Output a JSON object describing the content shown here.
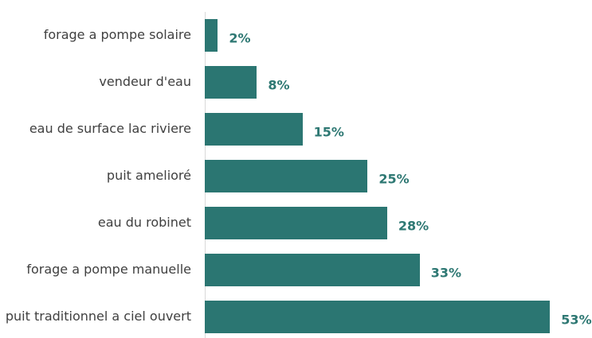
{
  "chart_data": {
    "type": "bar",
    "orientation": "horizontal",
    "categories": [
      "forage a pompe solaire",
      "vendeur d'eau",
      "eau de surface lac riviere",
      "puit amelioré",
      "eau du robinet",
      "forage a pompe manuelle",
      "puit traditionnel a ciel ouvert"
    ],
    "values": [
      2,
      8,
      15,
      25,
      28,
      33,
      53
    ],
    "value_labels": [
      "2%",
      "8%",
      "15%",
      "25%",
      "28%",
      "33%",
      "53%"
    ],
    "color": "#2b7672",
    "label_color": "#2e7873",
    "xlim": [
      0,
      57
    ]
  }
}
